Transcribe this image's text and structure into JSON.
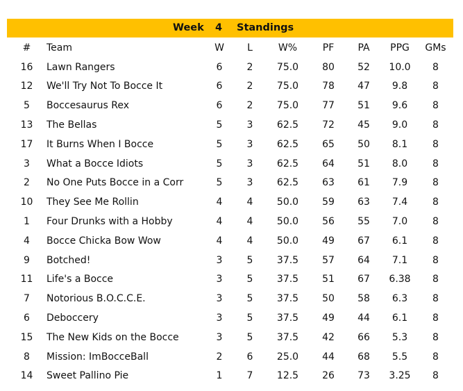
{
  "title": {
    "week_label": "Week",
    "week_number": "4",
    "standings_label": "Standings"
  },
  "columns": {
    "rank": "#",
    "team": "Team",
    "w": "W",
    "l": "L",
    "pct": "W%",
    "pf": "PF",
    "pa": "PA",
    "ppg": "PPG",
    "gms": "GMs"
  },
  "rows": [
    {
      "rank": "16",
      "team": "Lawn Rangers",
      "w": "6",
      "l": "2",
      "pct": "75.0",
      "pf": "80",
      "pa": "52",
      "ppg": "10.0",
      "gms": "8"
    },
    {
      "rank": "12",
      "team": "We'll Try Not To Bocce It",
      "w": "6",
      "l": "2",
      "pct": "75.0",
      "pf": "78",
      "pa": "47",
      "ppg": "9.8",
      "gms": "8"
    },
    {
      "rank": "5",
      "team": "Boccesaurus Rex",
      "w": "6",
      "l": "2",
      "pct": "75.0",
      "pf": "77",
      "pa": "51",
      "ppg": "9.6",
      "gms": "8"
    },
    {
      "rank": "13",
      "team": "The Bellas",
      "w": "5",
      "l": "3",
      "pct": "62.5",
      "pf": "72",
      "pa": "45",
      "ppg": "9.0",
      "gms": "8"
    },
    {
      "rank": "17",
      "team": "It Burns When I Bocce",
      "w": "5",
      "l": "3",
      "pct": "62.5",
      "pf": "65",
      "pa": "50",
      "ppg": "8.1",
      "gms": "8"
    },
    {
      "rank": "3",
      "team": "What a Bocce Idiots",
      "w": "5",
      "l": "3",
      "pct": "62.5",
      "pf": "64",
      "pa": "51",
      "ppg": "8.0",
      "gms": "8"
    },
    {
      "rank": "2",
      "team": "No One Puts Bocce in a Corr",
      "w": "5",
      "l": "3",
      "pct": "62.5",
      "pf": "63",
      "pa": "61",
      "ppg": "7.9",
      "gms": "8"
    },
    {
      "rank": "10",
      "team": "They See Me Rollin",
      "w": "4",
      "l": "4",
      "pct": "50.0",
      "pf": "59",
      "pa": "63",
      "ppg": "7.4",
      "gms": "8"
    },
    {
      "rank": "1",
      "team": "Four Drunks with a Hobby",
      "w": "4",
      "l": "4",
      "pct": "50.0",
      "pf": "56",
      "pa": "55",
      "ppg": "7.0",
      "gms": "8"
    },
    {
      "rank": "4",
      "team": "Bocce Chicka Bow Wow",
      "w": "4",
      "l": "4",
      "pct": "50.0",
      "pf": "49",
      "pa": "67",
      "ppg": "6.1",
      "gms": "8"
    },
    {
      "rank": "9",
      "team": "Botched!",
      "w": "3",
      "l": "5",
      "pct": "37.5",
      "pf": "57",
      "pa": "64",
      "ppg": "7.1",
      "gms": "8"
    },
    {
      "rank": "11",
      "team": "Life's a Bocce",
      "w": "3",
      "l": "5",
      "pct": "37.5",
      "pf": "51",
      "pa": "67",
      "ppg": "6.38",
      "gms": "8"
    },
    {
      "rank": "7",
      "team": "Notorious B.O.C.C.E.",
      "w": "3",
      "l": "5",
      "pct": "37.5",
      "pf": "50",
      "pa": "58",
      "ppg": "6.3",
      "gms": "8"
    },
    {
      "rank": "6",
      "team": "Deboccery",
      "w": "3",
      "l": "5",
      "pct": "37.5",
      "pf": "49",
      "pa": "44",
      "ppg": "6.1",
      "gms": "8"
    },
    {
      "rank": "15",
      "team": "The New Kids on the Bocce",
      "w": "3",
      "l": "5",
      "pct": "37.5",
      "pf": "42",
      "pa": "66",
      "ppg": "5.3",
      "gms": "8"
    },
    {
      "rank": "8",
      "team": "Mission: ImBocceBall",
      "w": "2",
      "l": "6",
      "pct": "25.0",
      "pf": "44",
      "pa": "68",
      "ppg": "5.5",
      "gms": "8"
    },
    {
      "rank": "14",
      "team": "Sweet Pallino Pie",
      "w": "1",
      "l": "7",
      "pct": "12.5",
      "pf": "26",
      "pa": "73",
      "ppg": "3.25",
      "gms": "8"
    }
  ],
  "colors": {
    "header_bar": "#ffc000",
    "text": "#111111"
  }
}
